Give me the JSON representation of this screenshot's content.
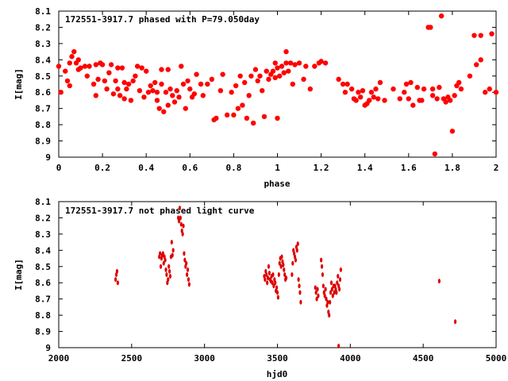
{
  "chart_data": [
    {
      "type": "scatter",
      "title": "172551-3917.7 phased with P=79.050day",
      "xlabel": "phase",
      "ylabel": "I[mag]",
      "xlim": [
        0,
        2
      ],
      "ylim": [
        9,
        8.1
      ],
      "xticks": [
        "0",
        "0.2",
        "0.4",
        "0.6",
        "0.8",
        "1",
        "1.2",
        "1.4",
        "1.6",
        "1.8",
        "2"
      ],
      "yticks": [
        "8.1",
        "8.2",
        "8.3",
        "8.4",
        "8.5",
        "8.6",
        "8.7",
        "8.8",
        "8.9",
        "9"
      ],
      "color": "#ff0000",
      "points": [
        [
          0.0,
          8.44
        ],
        [
          0.01,
          8.6
        ],
        [
          0.03,
          8.47
        ],
        [
          0.04,
          8.53
        ],
        [
          0.05,
          8.56
        ],
        [
          0.05,
          8.42
        ],
        [
          0.06,
          8.38
        ],
        [
          0.07,
          8.35
        ],
        [
          0.08,
          8.42
        ],
        [
          0.09,
          8.46
        ],
        [
          0.09,
          8.4
        ],
        [
          0.1,
          8.45
        ],
        [
          0.12,
          8.44
        ],
        [
          0.13,
          8.5
        ],
        [
          0.14,
          8.44
        ],
        [
          0.16,
          8.55
        ],
        [
          0.17,
          8.62
        ],
        [
          0.17,
          8.43
        ],
        [
          0.18,
          8.52
        ],
        [
          0.19,
          8.42
        ],
        [
          0.2,
          8.43
        ],
        [
          0.21,
          8.53
        ],
        [
          0.22,
          8.58
        ],
        [
          0.23,
          8.48
        ],
        [
          0.24,
          8.43
        ],
        [
          0.25,
          8.61
        ],
        [
          0.26,
          8.53
        ],
        [
          0.27,
          8.45
        ],
        [
          0.27,
          8.58
        ],
        [
          0.28,
          8.62
        ],
        [
          0.29,
          8.45
        ],
        [
          0.3,
          8.64
        ],
        [
          0.3,
          8.54
        ],
        [
          0.31,
          8.58
        ],
        [
          0.32,
          8.55
        ],
        [
          0.33,
          8.65
        ],
        [
          0.34,
          8.53
        ],
        [
          0.35,
          8.5
        ],
        [
          0.36,
          8.44
        ],
        [
          0.37,
          8.59
        ],
        [
          0.38,
          8.45
        ],
        [
          0.39,
          8.63
        ],
        [
          0.4,
          8.47
        ],
        [
          0.41,
          8.6
        ],
        [
          0.42,
          8.56
        ],
        [
          0.43,
          8.59
        ],
        [
          0.44,
          8.54
        ],
        [
          0.45,
          8.6
        ],
        [
          0.45,
          8.65
        ],
        [
          0.46,
          8.7
        ],
        [
          0.47,
          8.55
        ],
        [
          0.47,
          8.46
        ],
        [
          0.48,
          8.72
        ],
        [
          0.49,
          8.6
        ],
        [
          0.5,
          8.68
        ],
        [
          0.5,
          8.46
        ],
        [
          0.51,
          8.58
        ],
        [
          0.52,
          8.62
        ],
        [
          0.53,
          8.66
        ],
        [
          0.54,
          8.59
        ],
        [
          0.55,
          8.63
        ],
        [
          0.56,
          8.44
        ],
        [
          0.57,
          8.55
        ],
        [
          0.58,
          8.7
        ],
        [
          0.59,
          8.53
        ],
        [
          0.6,
          8.58
        ],
        [
          0.61,
          8.63
        ],
        [
          0.62,
          8.61
        ],
        [
          0.63,
          8.49
        ],
        [
          0.65,
          8.55
        ],
        [
          0.66,
          8.62
        ],
        [
          0.68,
          8.55
        ],
        [
          0.7,
          8.52
        ],
        [
          0.71,
          8.77
        ],
        [
          0.72,
          8.76
        ],
        [
          0.74,
          8.59
        ],
        [
          0.75,
          8.49
        ],
        [
          0.77,
          8.74
        ],
        [
          0.79,
          8.6
        ],
        [
          0.8,
          8.74
        ],
        [
          0.81,
          8.56
        ],
        [
          0.82,
          8.7
        ],
        [
          0.83,
          8.5
        ],
        [
          0.84,
          8.68
        ],
        [
          0.85,
          8.54
        ],
        [
          0.86,
          8.76
        ],
        [
          0.87,
          8.62
        ],
        [
          0.88,
          8.5
        ],
        [
          0.89,
          8.79
        ],
        [
          0.9,
          8.46
        ],
        [
          0.91,
          8.53
        ],
        [
          0.92,
          8.5
        ],
        [
          0.93,
          8.59
        ],
        [
          0.94,
          8.75
        ],
        [
          0.95,
          8.47
        ],
        [
          0.96,
          8.52
        ],
        [
          0.97,
          8.49
        ],
        [
          0.98,
          8.47
        ],
        [
          0.99,
          8.42
        ],
        [
          0.99,
          8.51
        ],
        [
          1.0,
          8.76
        ],
        [
          1.0,
          8.45
        ],
        [
          1.01,
          8.5
        ],
        [
          1.02,
          8.44
        ],
        [
          1.03,
          8.48
        ],
        [
          1.04,
          8.42
        ],
        [
          1.04,
          8.35
        ],
        [
          1.05,
          8.47
        ],
        [
          1.06,
          8.42
        ],
        [
          1.07,
          8.55
        ],
        [
          1.08,
          8.43
        ],
        [
          1.1,
          8.42
        ],
        [
          1.12,
          8.52
        ],
        [
          1.13,
          8.44
        ],
        [
          1.15,
          8.58
        ],
        [
          1.17,
          8.44
        ],
        [
          1.19,
          8.42
        ],
        [
          1.2,
          8.41
        ],
        [
          1.22,
          8.42
        ],
        [
          1.28,
          8.52
        ],
        [
          1.3,
          8.55
        ],
        [
          1.31,
          8.6
        ],
        [
          1.32,
          8.55
        ],
        [
          1.34,
          8.58
        ],
        [
          1.35,
          8.64
        ],
        [
          1.36,
          8.65
        ],
        [
          1.37,
          8.6
        ],
        [
          1.38,
          8.63
        ],
        [
          1.39,
          8.59
        ],
        [
          1.4,
          8.68
        ],
        [
          1.41,
          8.67
        ],
        [
          1.42,
          8.65
        ],
        [
          1.43,
          8.6
        ],
        [
          1.44,
          8.63
        ],
        [
          1.45,
          8.58
        ],
        [
          1.46,
          8.64
        ],
        [
          1.47,
          8.54
        ],
        [
          1.49,
          8.65
        ],
        [
          1.53,
          8.58
        ],
        [
          1.56,
          8.64
        ],
        [
          1.58,
          8.6
        ],
        [
          1.59,
          8.55
        ],
        [
          1.6,
          8.64
        ],
        [
          1.61,
          8.54
        ],
        [
          1.62,
          8.68
        ],
        [
          1.64,
          8.57
        ],
        [
          1.65,
          8.65
        ],
        [
          1.66,
          8.65
        ],
        [
          1.67,
          8.58
        ],
        [
          1.69,
          8.2
        ],
        [
          1.7,
          8.2
        ],
        [
          1.71,
          8.62
        ],
        [
          1.71,
          8.58
        ],
        [
          1.72,
          8.98
        ],
        [
          1.73,
          8.64
        ],
        [
          1.74,
          8.57
        ],
        [
          1.75,
          8.13
        ],
        [
          1.76,
          8.64
        ],
        [
          1.77,
          8.66
        ],
        [
          1.78,
          8.63
        ],
        [
          1.79,
          8.65
        ],
        [
          1.8,
          8.84
        ],
        [
          1.81,
          8.62
        ],
        [
          1.82,
          8.56
        ],
        [
          1.83,
          8.54
        ],
        [
          1.84,
          8.58
        ],
        [
          1.88,
          8.5
        ],
        [
          1.9,
          8.25
        ],
        [
          1.91,
          8.43
        ],
        [
          1.93,
          8.25
        ],
        [
          1.93,
          8.4
        ],
        [
          1.95,
          8.6
        ],
        [
          1.97,
          8.58
        ],
        [
          1.98,
          8.24
        ],
        [
          2.0,
          8.6
        ]
      ]
    },
    {
      "type": "scatter",
      "title": "172551-3917.7 not phased light curve",
      "xlabel": "hjd0",
      "ylabel": "I[mag]",
      "xlim": [
        2000,
        5000
      ],
      "ylim": [
        9,
        8.1
      ],
      "xticks": [
        "2000",
        "2500",
        "3000",
        "3500",
        "4000",
        "4500",
        "5000"
      ],
      "yticks": [
        "8.1",
        "8.2",
        "8.3",
        "8.4",
        "8.5",
        "8.6",
        "8.7",
        "8.8",
        "8.9",
        "9"
      ],
      "color": "#dd0000",
      "points": [
        [
          2390,
          8.58
        ],
        [
          2395,
          8.55
        ],
        [
          2400,
          8.53
        ],
        [
          2405,
          8.6
        ],
        [
          2690,
          8.44
        ],
        [
          2695,
          8.42
        ],
        [
          2700,
          8.5
        ],
        [
          2705,
          8.45
        ],
        [
          2710,
          8.43
        ],
        [
          2715,
          8.42
        ],
        [
          2720,
          8.48
        ],
        [
          2725,
          8.44
        ],
        [
          2730,
          8.46
        ],
        [
          2735,
          8.52
        ],
        [
          2740,
          8.55
        ],
        [
          2745,
          8.6
        ],
        [
          2750,
          8.58
        ],
        [
          2755,
          8.5
        ],
        [
          2760,
          8.53
        ],
        [
          2765,
          8.56
        ],
        [
          2770,
          8.44
        ],
        [
          2775,
          8.35
        ],
        [
          2780,
          8.43
        ],
        [
          2785,
          8.4
        ],
        [
          2820,
          8.2
        ],
        [
          2825,
          8.22
        ],
        [
          2830,
          8.14
        ],
        [
          2835,
          8.2
        ],
        [
          2840,
          8.24
        ],
        [
          2845,
          8.28
        ],
        [
          2850,
          8.3
        ],
        [
          2855,
          8.25
        ],
        [
          2860,
          8.42
        ],
        [
          2865,
          8.46
        ],
        [
          2870,
          8.5
        ],
        [
          2875,
          8.48
        ],
        [
          2880,
          8.55
        ],
        [
          2885,
          8.52
        ],
        [
          2890,
          8.58
        ],
        [
          2895,
          8.61
        ],
        [
          3410,
          8.56
        ],
        [
          3415,
          8.58
        ],
        [
          3420,
          8.53
        ],
        [
          3425,
          8.55
        ],
        [
          3430,
          8.6
        ],
        [
          3435,
          8.57
        ],
        [
          3440,
          8.5
        ],
        [
          3445,
          8.54
        ],
        [
          3450,
          8.58
        ],
        [
          3455,
          8.59
        ],
        [
          3460,
          8.56
        ],
        [
          3465,
          8.6
        ],
        [
          3470,
          8.55
        ],
        [
          3475,
          8.62
        ],
        [
          3480,
          8.58
        ],
        [
          3485,
          8.6
        ],
        [
          3490,
          8.65
        ],
        [
          3495,
          8.63
        ],
        [
          3500,
          8.66
        ],
        [
          3505,
          8.69
        ],
        [
          3510,
          8.55
        ],
        [
          3515,
          8.48
        ],
        [
          3520,
          8.45
        ],
        [
          3525,
          8.5
        ],
        [
          3530,
          8.44
        ],
        [
          3535,
          8.47
        ],
        [
          3540,
          8.49
        ],
        [
          3545,
          8.52
        ],
        [
          3550,
          8.55
        ],
        [
          3555,
          8.58
        ],
        [
          3560,
          8.57
        ],
        [
          3600,
          8.55
        ],
        [
          3605,
          8.48
        ],
        [
          3610,
          8.4
        ],
        [
          3615,
          8.42
        ],
        [
          3620,
          8.44
        ],
        [
          3625,
          8.46
        ],
        [
          3630,
          8.38
        ],
        [
          3635,
          8.4
        ],
        [
          3640,
          8.36
        ],
        [
          3645,
          8.58
        ],
        [
          3650,
          8.62
        ],
        [
          3655,
          8.66
        ],
        [
          3660,
          8.72
        ],
        [
          3760,
          8.63
        ],
        [
          3765,
          8.66
        ],
        [
          3770,
          8.7
        ],
        [
          3775,
          8.64
        ],
        [
          3780,
          8.68
        ],
        [
          3800,
          8.46
        ],
        [
          3805,
          8.5
        ],
        [
          3810,
          8.55
        ],
        [
          3815,
          8.62
        ],
        [
          3820,
          8.66
        ],
        [
          3825,
          8.68
        ],
        [
          3830,
          8.64
        ],
        [
          3835,
          8.7
        ],
        [
          3840,
          8.74
        ],
        [
          3845,
          8.72
        ],
        [
          3850,
          8.78
        ],
        [
          3855,
          8.8
        ],
        [
          3860,
          8.72
        ],
        [
          3865,
          8.66
        ],
        [
          3870,
          8.6
        ],
        [
          3875,
          8.64
        ],
        [
          3880,
          8.68
        ],
        [
          3885,
          8.62
        ],
        [
          3890,
          8.66
        ],
        [
          3895,
          8.62
        ],
        [
          3900,
          8.64
        ],
        [
          3905,
          8.66
        ],
        [
          3910,
          8.6
        ],
        [
          3915,
          8.56
        ],
        [
          3920,
          8.62
        ],
        [
          3925,
          8.64
        ],
        [
          3930,
          8.58
        ],
        [
          3935,
          8.52
        ],
        [
          3920,
          8.99
        ],
        [
          4610,
          8.59
        ],
        [
          4720,
          8.84
        ]
      ]
    }
  ]
}
